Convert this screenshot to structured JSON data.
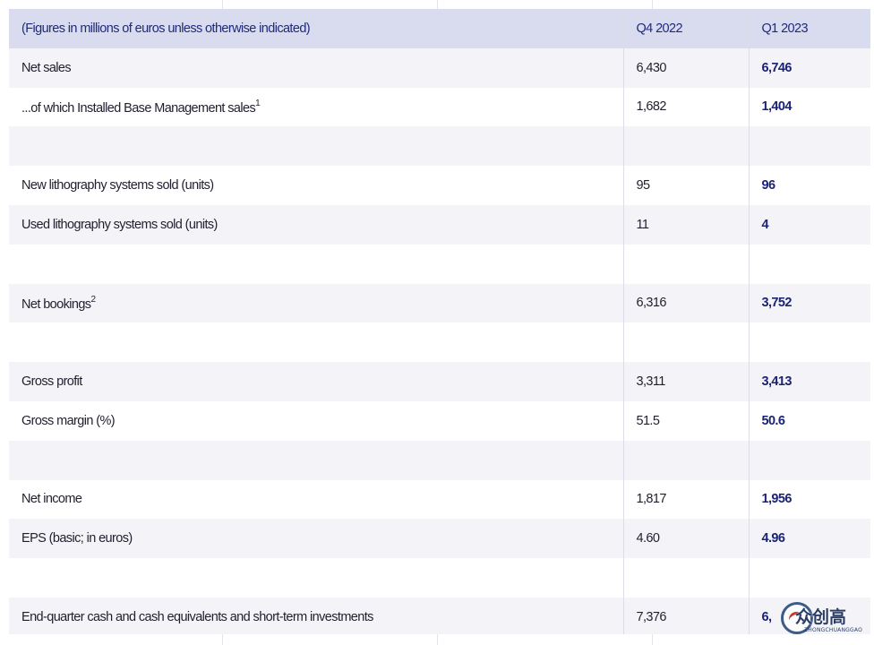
{
  "table": {
    "header": {
      "label": "(Figures in millions of euros unless otherwise indicated)",
      "col_q4": "Q4 2022",
      "col_q1": "Q1 2023"
    },
    "rows": [
      {
        "label": "Net sales",
        "sup": "",
        "q4": "6,430",
        "q1": "6,746"
      },
      {
        "label": "...of which Installed Base Management sales",
        "sup": "1",
        "q4": "1,682",
        "q1": "1,404"
      },
      {
        "label": "",
        "sup": "",
        "q4": "",
        "q1": ""
      },
      {
        "label": "New lithography systems sold (units)",
        "sup": "",
        "q4": "95",
        "q1": "96"
      },
      {
        "label": "Used lithography systems sold (units)",
        "sup": "",
        "q4": "11",
        "q1": "4"
      },
      {
        "label": "",
        "sup": "",
        "q4": "",
        "q1": ""
      },
      {
        "label": "Net bookings",
        "sup": "2",
        "q4": "6,316",
        "q1": "3,752"
      },
      {
        "label": "",
        "sup": "",
        "q4": "",
        "q1": ""
      },
      {
        "label": "Gross profit",
        "sup": "",
        "q4": "3,311",
        "q1": "3,413"
      },
      {
        "label": "Gross margin (%)",
        "sup": "",
        "q4": "51.5",
        "q1": "50.6"
      },
      {
        "label": "",
        "sup": "",
        "q4": "",
        "q1": ""
      },
      {
        "label": "Net income",
        "sup": "",
        "q4": "1,817",
        "q1": "1,956"
      },
      {
        "label": "EPS (basic; in euros)",
        "sup": "",
        "q4": "4.60",
        "q1": "4.96"
      },
      {
        "label": "",
        "sup": "",
        "q4": "",
        "q1": ""
      },
      {
        "label": "End-quarter cash and cash equivalents and short-term investments",
        "sup": "",
        "q4": "7,376",
        "q1": "6,"
      }
    ]
  },
  "watermark": {
    "cn": "众创高",
    "pinyin": "ZHONGCHUANGGAO"
  }
}
